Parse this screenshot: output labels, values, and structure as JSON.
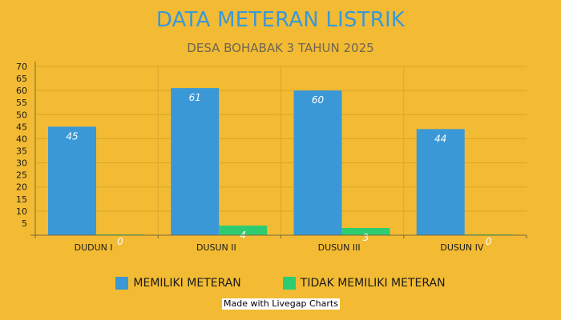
{
  "chart_data": {
    "type": "bar",
    "title": "DATA METERAN LISTRIK",
    "subtitle": "DESA BOHABAK 3 TAHUN 2025",
    "categories": [
      "DUDUN I",
      "DUSUN II",
      "DUSUN III",
      "DUSUN IV"
    ],
    "series": [
      {
        "name": "MEMILIKI METERAN",
        "values": [
          45,
          61,
          60,
          44
        ],
        "color": "#3a98d6"
      },
      {
        "name": "TIDAK MEMILIKI METERAN",
        "values": [
          0,
          4,
          3,
          0
        ],
        "color": "#2ecc71"
      }
    ],
    "ylim": [
      0,
      70
    ],
    "yticks": [
      5,
      10,
      15,
      20,
      25,
      30,
      35,
      40,
      45,
      50,
      55,
      60,
      65,
      70
    ],
    "grid": true,
    "legend_position": "bottom",
    "xlabel": "",
    "ylabel": ""
  },
  "credit": "Made with Livegap Charts"
}
